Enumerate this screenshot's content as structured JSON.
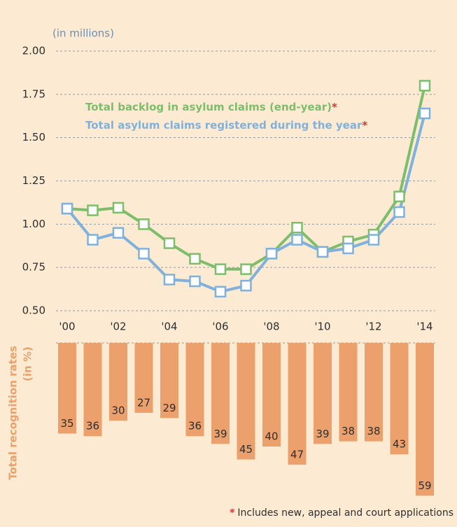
{
  "chart_data": [
    {
      "type": "line",
      "unit_label": "(in millions)",
      "categories": [
        "'00",
        null,
        "'02",
        null,
        "'04",
        null,
        "'06",
        null,
        "'08",
        null,
        "'10",
        null,
        "'12",
        null,
        "'14"
      ],
      "series": [
        {
          "name": "Total backlog in asylum claims (end-year)",
          "color": "#7dbd6b",
          "values": [
            1.09,
            1.08,
            1.095,
            1.0,
            0.89,
            0.8,
            0.74,
            0.74,
            0.83,
            0.98,
            0.84,
            0.9,
            0.94,
            1.16,
            1.8
          ]
        },
        {
          "name": "Total asylum claims registered during the year",
          "color": "#80b1dc",
          "values": [
            1.09,
            0.91,
            0.95,
            0.83,
            0.68,
            0.67,
            0.61,
            0.645,
            0.83,
            0.91,
            0.84,
            0.86,
            0.91,
            1.07,
            1.64
          ]
        }
      ],
      "legend_marker": "*",
      "ylim": [
        0.5,
        2.0
      ],
      "yticks": [
        {
          "value": 0.5,
          "label": "0.50"
        },
        0.75,
        {
          "value": 1.0,
          "label": "1.00"
        },
        1.25,
        {
          "value": 1.5,
          "label": "1.50"
        },
        1.75,
        {
          "value": 2.0,
          "label": "2.00"
        }
      ],
      "grid": true
    },
    {
      "type": "bar",
      "ylabel": [
        "Total recognition rates",
        "(in %)"
      ],
      "values": [
        35,
        36,
        30,
        27,
        29,
        36,
        39,
        45,
        40,
        47,
        39,
        38,
        38,
        43,
        59
      ],
      "color": "#eca06b",
      "ylim": [
        0,
        60
      ],
      "footnote": {
        "marker": "*",
        "text": "Includes new, appeal and court applications"
      }
    }
  ]
}
